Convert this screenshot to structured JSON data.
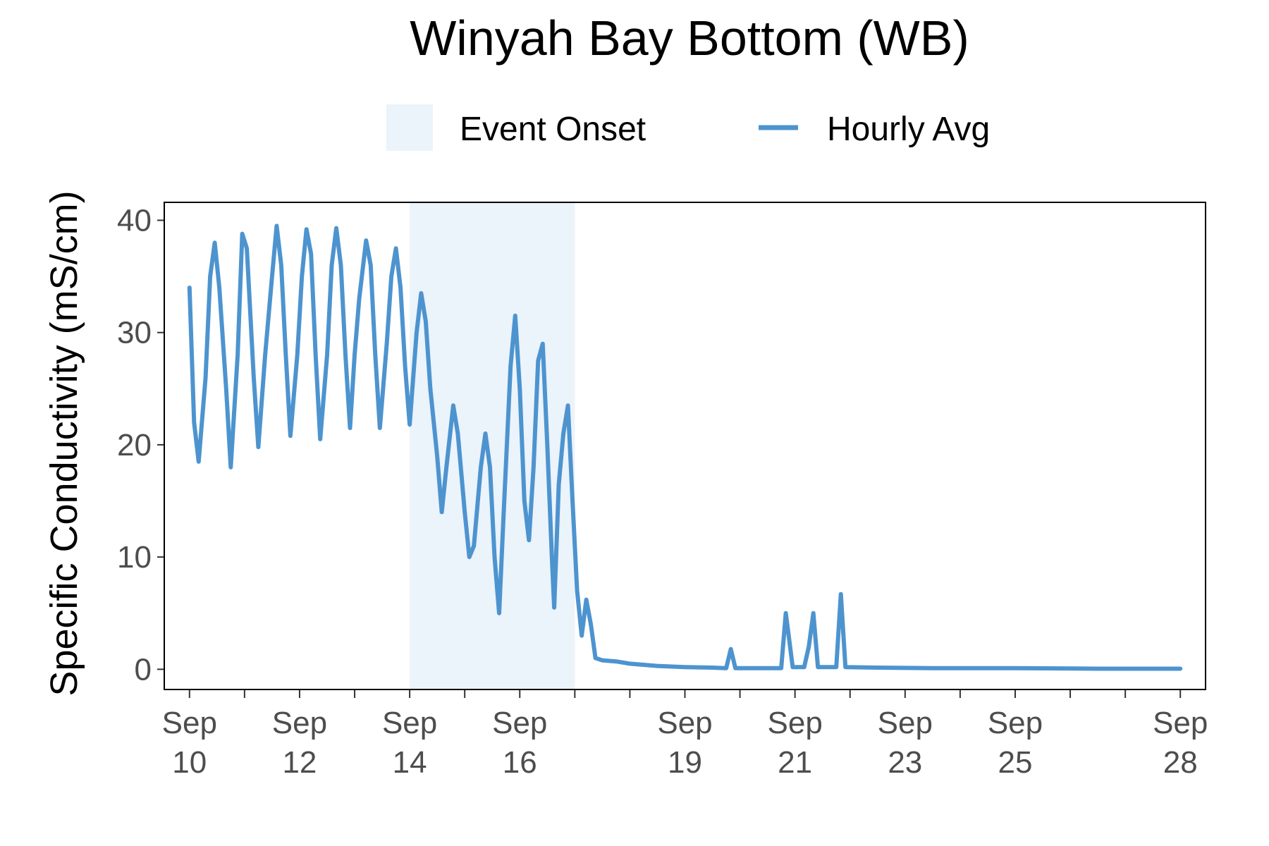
{
  "chart_data": {
    "type": "line",
    "title": "Winyah Bay Bottom (WB)",
    "ylabel": "Specific Conductivity (mS/cm)",
    "xlabel": "",
    "ylim": [
      -1.8,
      41.6
    ],
    "xlim": [
      "2018-09-09T13:00",
      "2018-09-28T11:00"
    ],
    "yticks": [
      0,
      10,
      20,
      30,
      40
    ],
    "xticks": [
      {
        "date": "2018-09-10",
        "label_top": "Sep",
        "label_bottom": "10"
      },
      {
        "date": "2018-09-12",
        "label_top": "Sep",
        "label_bottom": "12"
      },
      {
        "date": "2018-09-14",
        "label_top": "Sep",
        "label_bottom": "14"
      },
      {
        "date": "2018-09-16",
        "label_top": "Sep",
        "label_bottom": "16"
      },
      {
        "date": "2018-09-19",
        "label_top": "Sep",
        "label_bottom": "19"
      },
      {
        "date": "2018-09-21",
        "label_top": "Sep",
        "label_bottom": "21"
      },
      {
        "date": "2018-09-23",
        "label_top": "Sep",
        "label_bottom": "23"
      },
      {
        "date": "2018-09-25",
        "label_top": "Sep",
        "label_bottom": "25"
      },
      {
        "date": "2018-09-28",
        "label_top": "Sep",
        "label_bottom": "28"
      }
    ],
    "minor_ticks": [
      "2018-09-11",
      "2018-09-13",
      "2018-09-15",
      "2018-09-17",
      "2018-09-18",
      "2018-09-20",
      "2018-09-22",
      "2018-09-24",
      "2018-09-26",
      "2018-09-27"
    ],
    "grid": false,
    "legend_position": "top",
    "legend": [
      {
        "name": "Event Onset",
        "kind": "fill",
        "color": "#ebf3fb"
      },
      {
        "name": "Hourly Avg",
        "kind": "line",
        "color": "#4d94cf"
      }
    ],
    "shaded_region": {
      "name": "Event Onset",
      "start": "2018-09-14",
      "end": "2018-09-17",
      "color": "#ebf3fb"
    },
    "series": [
      {
        "name": "Hourly Avg",
        "color": "#4d94cf",
        "points": [
          [
            "2018-09-10T00:00",
            34.0
          ],
          [
            "2018-09-10T02:00",
            22.0
          ],
          [
            "2018-09-10T04:00",
            18.5
          ],
          [
            "2018-09-10T07:00",
            26.0
          ],
          [
            "2018-09-10T09:00",
            35.0
          ],
          [
            "2018-09-10T11:00",
            38.0
          ],
          [
            "2018-09-10T13:00",
            34.0
          ],
          [
            "2018-09-10T16:00",
            25.0
          ],
          [
            "2018-09-10T18:00",
            18.0
          ],
          [
            "2018-09-10T21:00",
            28.0
          ],
          [
            "2018-09-10T23:00",
            38.8
          ],
          [
            "2018-09-11T01:00",
            37.5
          ],
          [
            "2018-09-11T04:00",
            26.0
          ],
          [
            "2018-09-11T06:00",
            19.8
          ],
          [
            "2018-09-11T09:00",
            28.0
          ],
          [
            "2018-09-11T12:00",
            35.0
          ],
          [
            "2018-09-11T14:00",
            39.5
          ],
          [
            "2018-09-11T16:00",
            36.0
          ],
          [
            "2018-09-11T18:00",
            28.0
          ],
          [
            "2018-09-11T20:00",
            20.8
          ],
          [
            "2018-09-11T23:00",
            28.0
          ],
          [
            "2018-09-12T01:00",
            35.0
          ],
          [
            "2018-09-12T03:00",
            39.2
          ],
          [
            "2018-09-12T05:00",
            37.0
          ],
          [
            "2018-09-12T07:00",
            28.0
          ],
          [
            "2018-09-12T09:00",
            20.5
          ],
          [
            "2018-09-12T12:00",
            28.0
          ],
          [
            "2018-09-12T14:00",
            36.0
          ],
          [
            "2018-09-12T16:00",
            39.3
          ],
          [
            "2018-09-12T18:00",
            36.0
          ],
          [
            "2018-09-12T20:00",
            28.0
          ],
          [
            "2018-09-12T22:00",
            21.5
          ],
          [
            "2018-09-13T00:00",
            28.0
          ],
          [
            "2018-09-13T02:00",
            33.0
          ],
          [
            "2018-09-13T05:00",
            38.2
          ],
          [
            "2018-09-13T07:00",
            36.0
          ],
          [
            "2018-09-13T09:00",
            28.0
          ],
          [
            "2018-09-13T11:00",
            21.5
          ],
          [
            "2018-09-13T14:00",
            29.0
          ],
          [
            "2018-09-13T16:00",
            35.0
          ],
          [
            "2018-09-13T18:00",
            37.5
          ],
          [
            "2018-09-13T20:00",
            34.0
          ],
          [
            "2018-09-13T22:00",
            27.0
          ],
          [
            "2018-09-14T00:00",
            21.8
          ],
          [
            "2018-09-14T03:00",
            30.0
          ],
          [
            "2018-09-14T05:00",
            33.5
          ],
          [
            "2018-09-14T07:00",
            31.0
          ],
          [
            "2018-09-14T09:00",
            25.0
          ],
          [
            "2018-09-14T12:00",
            19.0
          ],
          [
            "2018-09-14T14:00",
            14.0
          ],
          [
            "2018-09-14T16:00",
            18.0
          ],
          [
            "2018-09-14T19:00",
            23.5
          ],
          [
            "2018-09-14T21:00",
            21.0
          ],
          [
            "2018-09-15T00:00",
            14.0
          ],
          [
            "2018-09-15T02:00",
            10.0
          ],
          [
            "2018-09-15T04:00",
            11.0
          ],
          [
            "2018-09-15T07:00",
            18.0
          ],
          [
            "2018-09-15T09:00",
            21.0
          ],
          [
            "2018-09-15T11:00",
            18.0
          ],
          [
            "2018-09-15T13:00",
            10.0
          ],
          [
            "2018-09-15T15:00",
            5.0
          ],
          [
            "2018-09-15T17:00",
            14.0
          ],
          [
            "2018-09-15T20:00",
            27.0
          ],
          [
            "2018-09-15T22:00",
            31.5
          ],
          [
            "2018-09-16T00:00",
            25.0
          ],
          [
            "2018-09-16T02:00",
            15.0
          ],
          [
            "2018-09-16T04:00",
            11.5
          ],
          [
            "2018-09-16T06:00",
            18.0
          ],
          [
            "2018-09-16T08:00",
            27.5
          ],
          [
            "2018-09-16T10:00",
            29.0
          ],
          [
            "2018-09-16T12:00",
            20.0
          ],
          [
            "2018-09-16T14:00",
            10.0
          ],
          [
            "2018-09-16T15:00",
            5.5
          ],
          [
            "2018-09-16T17:00",
            16.5
          ],
          [
            "2018-09-16T19:00",
            21.0
          ],
          [
            "2018-09-16T21:00",
            23.5
          ],
          [
            "2018-09-16T23:00",
            15.0
          ],
          [
            "2018-09-17T01:00",
            7.0
          ],
          [
            "2018-09-17T03:00",
            3.0
          ],
          [
            "2018-09-17T05:00",
            6.2
          ],
          [
            "2018-09-17T07:00",
            4.0
          ],
          [
            "2018-09-17T09:00",
            1.0
          ],
          [
            "2018-09-17T12:00",
            0.8
          ],
          [
            "2018-09-17T18:00",
            0.7
          ],
          [
            "2018-09-18T00:00",
            0.5
          ],
          [
            "2018-09-18T12:00",
            0.3
          ],
          [
            "2018-09-19T00:00",
            0.2
          ],
          [
            "2018-09-19T12:00",
            0.15
          ],
          [
            "2018-09-19T18:00",
            0.1
          ],
          [
            "2018-09-19T20:00",
            1.8
          ],
          [
            "2018-09-19T22:00",
            0.1
          ],
          [
            "2018-09-20T12:00",
            0.1
          ],
          [
            "2018-09-20T18:00",
            0.1
          ],
          [
            "2018-09-20T20:00",
            5.0
          ],
          [
            "2018-09-20T23:00",
            0.2
          ],
          [
            "2018-09-21T04:00",
            0.2
          ],
          [
            "2018-09-21T06:00",
            2.0
          ],
          [
            "2018-09-21T08:00",
            5.0
          ],
          [
            "2018-09-21T10:00",
            0.2
          ],
          [
            "2018-09-21T18:00",
            0.2
          ],
          [
            "2018-09-21T20:00",
            6.7
          ],
          [
            "2018-09-21T22:00",
            0.2
          ],
          [
            "2018-09-22T12:00",
            0.15
          ],
          [
            "2018-09-23T12:00",
            0.1
          ],
          [
            "2018-09-25T00:00",
            0.1
          ],
          [
            "2018-09-26T12:00",
            0.05
          ],
          [
            "2018-09-28T00:00",
            0.05
          ]
        ]
      }
    ]
  }
}
